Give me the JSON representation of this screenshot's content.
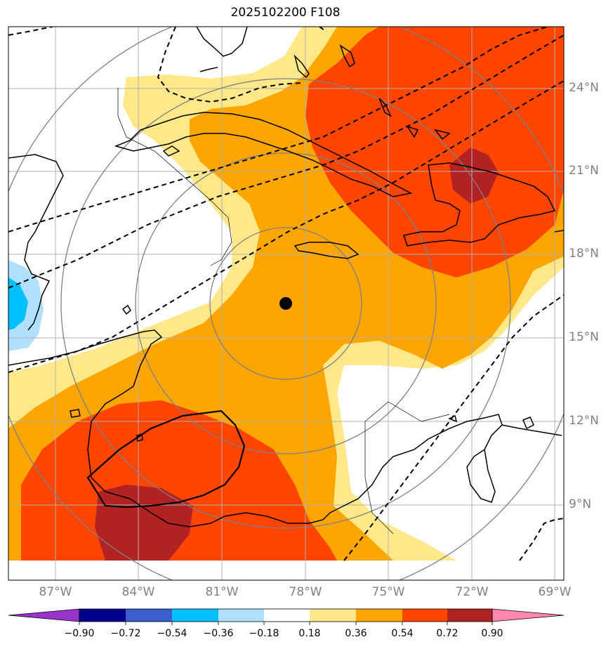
{
  "title": "2025102200 F108",
  "map": {
    "projection": "stereographic",
    "lon_range": [
      -89,
      -68.5
    ],
    "lat_range": [
      7,
      26
    ],
    "lat_labels": [
      "24°N",
      "21°N",
      "18°N",
      "15°N",
      "12°N",
      "9°N"
    ],
    "lon_labels": [
      "87°W",
      "84°W",
      "81°W",
      "78°W",
      "75°W",
      "72°W",
      "69°W"
    ],
    "storm_center_marker": {
      "lon": -78.7,
      "lat": 16.2,
      "color": "#000000"
    },
    "range_rings": "concentric gray circles around storm center",
    "contours": "dashed black isolines; solid black closed contour over Nicaragua/Honduras"
  },
  "colorbar": {
    "ticks": [
      "−0.90",
      "−0.72",
      "−0.54",
      "−0.36",
      "−0.18",
      "0.18",
      "0.36",
      "0.54",
      "0.72",
      "0.90"
    ],
    "colors": [
      "#9933cc",
      "#00008b",
      "#3a5fcd",
      "#00bfff",
      "#b0e0ff",
      "#ffffff",
      "#ffe88a",
      "#ffa500",
      "#ff4500",
      "#b22222",
      "#ff88aa"
    ],
    "extend": "both"
  }
}
